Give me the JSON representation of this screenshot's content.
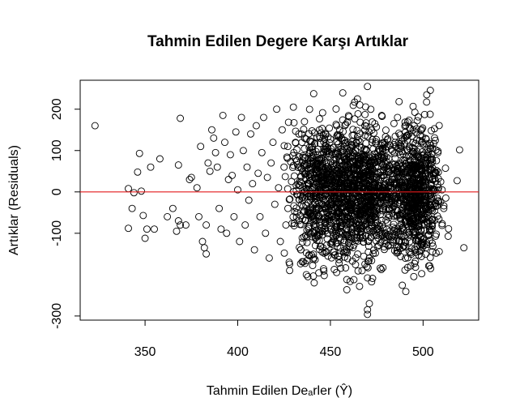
{
  "chart_data": {
    "type": "scatter",
    "title": "Tahmin Edilen Degere Karşı Artıklar",
    "xlabel": "Tahmin Edilen Deₐrler (Ŷ)",
    "ylabel": "Artıklar (Residuals)",
    "xlim": [
      315,
      530
    ],
    "ylim": [
      -310,
      270
    ],
    "x_ticks": [
      350,
      400,
      450,
      500
    ],
    "x_tick_labels": [
      "350",
      "400",
      "450",
      "500"
    ],
    "y_ticks": [
      -300,
      -100,
      0,
      100,
      200
    ],
    "y_tick_labels": [
      "-300",
      "-100",
      "0",
      "100",
      "200"
    ],
    "grid": false,
    "reference_line": {
      "y": 0,
      "color": "#e41a1c"
    },
    "marker": "open-circle",
    "point_color": "#000000",
    "points": [
      [
        323,
        160
      ],
      [
        341,
        8
      ],
      [
        341,
        -88
      ],
      [
        343,
        -40
      ],
      [
        344,
        -2
      ],
      [
        346,
        48
      ],
      [
        347,
        93
      ],
      [
        348,
        2
      ],
      [
        349,
        -57
      ],
      [
        350,
        -112
      ],
      [
        351,
        -90
      ],
      [
        353,
        60
      ],
      [
        355,
        -90
      ],
      [
        358,
        80
      ],
      [
        362,
        -60
      ],
      [
        365,
        -40
      ],
      [
        367,
        -95
      ],
      [
        368,
        65
      ],
      [
        368,
        -70
      ],
      [
        369,
        178
      ],
      [
        369,
        -80
      ],
      [
        372,
        -80
      ],
      [
        374,
        30
      ],
      [
        375,
        35
      ],
      [
        378,
        10
      ],
      [
        379,
        -60
      ],
      [
        380,
        110
      ],
      [
        381,
        -120
      ],
      [
        382,
        -135
      ],
      [
        383,
        -150
      ],
      [
        383,
        -80
      ],
      [
        384,
        70
      ],
      [
        385,
        50
      ],
      [
        386,
        150
      ],
      [
        387,
        130
      ],
      [
        388,
        95
      ],
      [
        389,
        60
      ],
      [
        390,
        -40
      ],
      [
        391,
        -90
      ],
      [
        392,
        185
      ],
      [
        393,
        120
      ],
      [
        394,
        -100
      ],
      [
        395,
        30
      ],
      [
        396,
        90
      ],
      [
        397,
        40
      ],
      [
        398,
        -60
      ],
      [
        399,
        145
      ],
      [
        400,
        5
      ],
      [
        401,
        -120
      ],
      [
        402,
        180
      ],
      [
        403,
        100
      ],
      [
        404,
        -80
      ],
      [
        405,
        60
      ],
      [
        406,
        -20
      ],
      [
        407,
        140
      ],
      [
        408,
        20
      ],
      [
        409,
        -140
      ],
      [
        410,
        160
      ],
      [
        411,
        45
      ],
      [
        412,
        -60
      ],
      [
        413,
        95
      ],
      [
        414,
        180
      ],
      [
        415,
        -100
      ],
      [
        416,
        35
      ],
      [
        417,
        -160
      ],
      [
        418,
        70
      ],
      [
        419,
        120
      ],
      [
        420,
        -30
      ],
      [
        421,
        200
      ],
      [
        422,
        10
      ],
      [
        423,
        -120
      ],
      [
        424,
        150
      ],
      [
        425,
        60
      ],
      [
        426,
        -80
      ],
      [
        427,
        110
      ],
      [
        428,
        -190
      ],
      [
        429,
        25
      ],
      [
        430,
        205
      ],
      [
        431,
        80
      ],
      [
        432,
        -50
      ],
      [
        433,
        140
      ],
      [
        434,
        -140
      ],
      [
        435,
        50
      ],
      [
        436,
        170
      ],
      [
        437,
        -200
      ],
      [
        438,
        15
      ],
      [
        439,
        95
      ]
    ],
    "dense_cloud": {
      "x_range": [
        425,
        520
      ],
      "y_range": [
        -260,
        260
      ],
      "extreme_points": [
        [
          470,
          255
        ],
        [
          502,
          235
        ],
        [
          471,
          -270
        ],
        [
          470,
          -285
        ],
        [
          470,
          -296
        ],
        [
          522,
          -135
        ]
      ]
    }
  }
}
